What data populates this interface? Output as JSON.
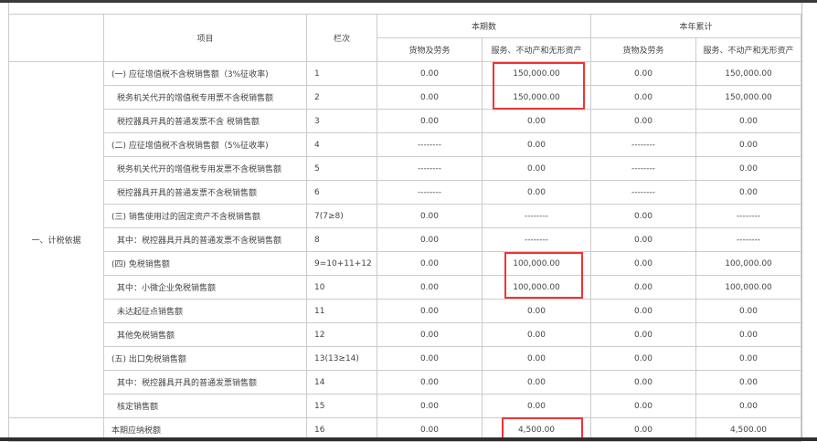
{
  "header": {
    "item": "项目",
    "line_no": "栏次",
    "current_period": "本期数",
    "year_to_date": "本年累计",
    "goods_services": "货物及劳务",
    "services_property": "服务、不动产和无形资产"
  },
  "section_label": "一、计税依据",
  "rows": [
    {
      "item": "(一) 应征增值税不含税销售额（3%征收率)",
      "line": "1",
      "c1": "0.00",
      "c2": "150,000.00",
      "c3": "0.00",
      "c4": "150,000.00",
      "sub": false
    },
    {
      "item": "税务机关代开的增值税专用票不含税销售额",
      "line": "2",
      "c1": "0.00",
      "c2": "150,000.00",
      "c3": "0.00",
      "c4": "150,000.00",
      "sub": true
    },
    {
      "item": "税控器具开具的普通发票不含 税销售额",
      "line": "3",
      "c1": "0.00",
      "c2": "0.00",
      "c3": "0.00",
      "c4": "0.00",
      "sub": true
    },
    {
      "item": "(二) 应征增值税不含税销售额（5%征收率)",
      "line": "4",
      "c1": "--------",
      "c2": "0.00",
      "c3": "--------",
      "c4": "0.00",
      "sub": false
    },
    {
      "item": "税务机关代开的增值税专用发票不含税销售额",
      "line": "5",
      "c1": "--------",
      "c2": "0.00",
      "c3": "--------",
      "c4": "0.00",
      "sub": true
    },
    {
      "item": "税控器具开具的普通发票不含税销售额",
      "line": "6",
      "c1": "--------",
      "c2": "0.00",
      "c3": "--------",
      "c4": "0.00",
      "sub": true
    },
    {
      "item": "(三) 销售使用过的固定资产不含税销售额",
      "line": "7(7≥8)",
      "c1": "0.00",
      "c2": "--------",
      "c3": "0.00",
      "c4": "--------",
      "sub": false
    },
    {
      "item": "其中：税控器具开具的普通发票不含税销售额",
      "line": "8",
      "c1": "0.00",
      "c2": "--------",
      "c3": "0.00",
      "c4": "--------",
      "sub": true
    },
    {
      "item": "(四) 免税销售额",
      "line": "9=10+11+12",
      "c1": "0.00",
      "c2": "100,000.00",
      "c3": "0.00",
      "c4": "100,000.00",
      "sub": false
    },
    {
      "item": "其中：小微企业免税销售额",
      "line": "10",
      "c1": "0.00",
      "c2": "100,000.00",
      "c3": "0.00",
      "c4": "100,000.00",
      "sub": true
    },
    {
      "item": "未达起征点销售额",
      "line": "11",
      "c1": "0.00",
      "c2": "0.00",
      "c3": "0.00",
      "c4": "0.00",
      "sub": true
    },
    {
      "item": "其他免税销售额",
      "line": "12",
      "c1": "0.00",
      "c2": "0.00",
      "c3": "0.00",
      "c4": "0.00",
      "sub": true
    },
    {
      "item": "(五) 出口免税销售额",
      "line": "13(13≥14)",
      "c1": "0.00",
      "c2": "0.00",
      "c3": "0.00",
      "c4": "0.00",
      "sub": false
    },
    {
      "item": "其中：税控器具开具的普通发票销售额",
      "line": "14",
      "c1": "0.00",
      "c2": "0.00",
      "c3": "0.00",
      "c4": "0.00",
      "sub": true
    },
    {
      "item": "核定销售额",
      "line": "15",
      "c1": "0.00",
      "c2": "0.00",
      "c3": "0.00",
      "c4": "0.00",
      "sub": true
    }
  ],
  "tax_row": {
    "item": "本期应纳税额",
    "line": "16",
    "c1": "0.00",
    "c2": "4,500.00",
    "c3": "0.00",
    "c4": "4,500.00"
  },
  "highlight_color": "#ee3333"
}
